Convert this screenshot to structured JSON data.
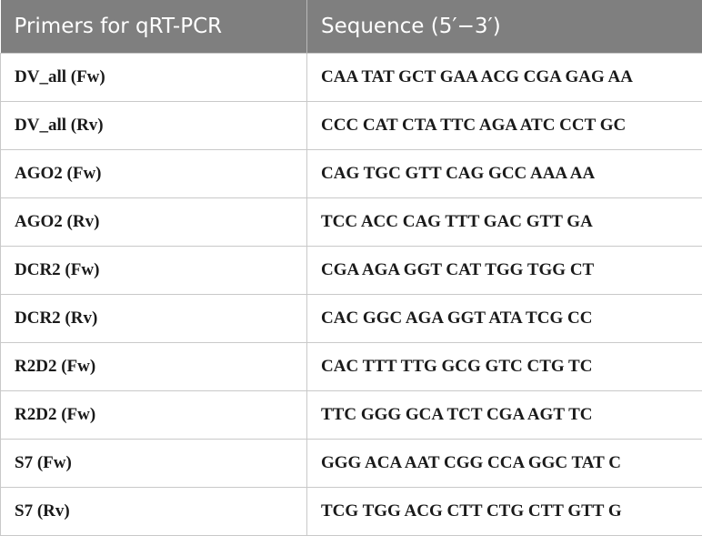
{
  "table": {
    "headers": [
      "Primers for qRT-PCR",
      "Sequence (5′−3′)"
    ],
    "rows": [
      {
        "primer": "DV_all (Fw)",
        "sequence": "CAA TAT GCT GAA ACG CGA GAG AA"
      },
      {
        "primer": "DV_all (Rv)",
        "sequence": "CCC CAT CTA TTC AGA ATC CCT GC"
      },
      {
        "primer": "AGO2 (Fw)",
        "sequence": "CAG TGC GTT CAG GCC AAA AA"
      },
      {
        "primer": "AGO2 (Rv)",
        "sequence": "TCC ACC CAG TTT GAC GTT GA"
      },
      {
        "primer": "DCR2 (Fw)",
        "sequence": "CGA AGA GGT CAT TGG TGG CT"
      },
      {
        "primer": "DCR2 (Rv)",
        "sequence": "CAC GGC AGA GGT ATA TCG CC"
      },
      {
        "primer": "R2D2 (Fw)",
        "sequence": "CAC TTT TTG GCG GTC CTG TC"
      },
      {
        "primer": "R2D2 (Fw)",
        "sequence": "TTC GGG GCA TCT CGA AGT TC"
      },
      {
        "primer": "S7 (Fw)",
        "sequence": "GGG ACA AAT CGG CCA GGC TAT C"
      },
      {
        "primer": "S7 (Rv)",
        "sequence": "TCG TGG ACG CTT CTG CTT GTT G"
      }
    ]
  },
  "colors": {
    "header_background": "#7f7f7f",
    "header_text": "#ffffff",
    "grid_lines": "#c9c9c9"
  }
}
